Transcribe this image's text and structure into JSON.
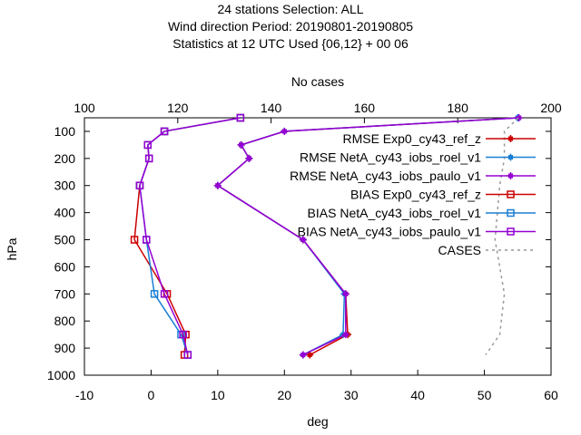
{
  "header": {
    "line1": "24 stations Selection: ALL",
    "line2": "Wind direction  Period: 20190801-20190805",
    "line3": "Statistics at 12 UTC  Used {06,12} + 00 06"
  },
  "chart_data": {
    "type": "line",
    "title": "24 stations Selection: ALL / Wind direction  Period: 20190801-20190805 / Statistics at 12 UTC  Used {06,12} + 00 06",
    "xlabel": "deg",
    "ylabel": "hPa",
    "x2label": "No cases",
    "xlim": [
      -10,
      60
    ],
    "ylim": [
      1000,
      50
    ],
    "x2lim": [
      100,
      200
    ],
    "y_reversed": true,
    "xticks": [
      "-10",
      "0",
      "10",
      "20",
      "30",
      "40",
      "50",
      "60"
    ],
    "yticks": [
      "100",
      "200",
      "300",
      "400",
      "500",
      "600",
      "700",
      "800",
      "900",
      "1000"
    ],
    "x2ticks": [
      "100",
      "120",
      "140",
      "160",
      "180",
      "200"
    ],
    "grid": false,
    "legend_position": "top-right",
    "series": [
      {
        "name": "RMSE Exp0_cy43_ref_z",
        "color": "#cc0000",
        "marker": "filled-square",
        "points": [
          [
            55.0,
            50
          ],
          [
            20.0,
            100
          ],
          [
            13.5,
            150
          ],
          [
            14.7,
            200
          ],
          [
            10.0,
            300
          ],
          [
            22.8,
            500
          ],
          [
            29.2,
            700
          ],
          [
            29.5,
            850
          ],
          [
            23.8,
            925
          ]
        ]
      },
      {
        "name": "RMSE NetA_cy43_iobs_roel_v1",
        "color": "#1a7fd4",
        "marker": "filled-square",
        "points": [
          [
            55.0,
            50
          ],
          [
            20.0,
            100
          ],
          [
            13.5,
            150
          ],
          [
            14.7,
            200
          ],
          [
            10.0,
            300
          ],
          [
            22.8,
            500
          ],
          [
            29.0,
            700
          ],
          [
            28.8,
            850
          ],
          [
            22.8,
            925
          ]
        ]
      },
      {
        "name": "RMSE NetA_cy43_iobs_paulo_v1",
        "color": "#9400d3",
        "marker": "filled-square",
        "points": [
          [
            55.2,
            50
          ],
          [
            20.0,
            100
          ],
          [
            13.5,
            150
          ],
          [
            14.7,
            200
          ],
          [
            10.0,
            300
          ],
          [
            22.8,
            500
          ],
          [
            29.2,
            700
          ],
          [
            29.2,
            850
          ],
          [
            22.8,
            925
          ]
        ]
      },
      {
        "name": "BIAS Exp0_cy43_ref_z",
        "color": "#cc0000",
        "marker": "open-square",
        "points": [
          [
            13.4,
            50
          ],
          [
            2.0,
            100
          ],
          [
            -0.5,
            150
          ],
          [
            -0.3,
            200
          ],
          [
            -1.7,
            300
          ],
          [
            -2.5,
            500
          ],
          [
            2.4,
            700
          ],
          [
            5.2,
            850
          ],
          [
            5.0,
            925
          ]
        ]
      },
      {
        "name": "BIAS NetA_cy43_iobs_roel_v1",
        "color": "#1a7fd4",
        "marker": "open-square",
        "points": [
          [
            13.4,
            50
          ],
          [
            2.0,
            100
          ],
          [
            -0.5,
            150
          ],
          [
            -0.3,
            200
          ],
          [
            -1.7,
            300
          ],
          [
            -0.7,
            500
          ],
          [
            0.5,
            700
          ],
          [
            4.5,
            850
          ],
          [
            5.5,
            925
          ]
        ]
      },
      {
        "name": "BIAS NetA_cy43_iobs_paulo_v1",
        "color": "#9400d3",
        "marker": "open-square",
        "points": [
          [
            13.4,
            50
          ],
          [
            2.0,
            100
          ],
          [
            -0.5,
            150
          ],
          [
            -0.3,
            200
          ],
          [
            -1.7,
            300
          ],
          [
            -0.7,
            500
          ],
          [
            2.0,
            700
          ],
          [
            4.8,
            850
          ],
          [
            5.5,
            925
          ]
        ]
      },
      {
        "name": "CASES",
        "color": "#999999",
        "marker": "none",
        "dashed": true,
        "axis": "x2",
        "points": [
          [
            193,
            50
          ],
          [
            190,
            100
          ],
          [
            190,
            150
          ],
          [
            190,
            200
          ],
          [
            189,
            300
          ],
          [
            188,
            500
          ],
          [
            190,
            700
          ],
          [
            189,
            850
          ],
          [
            186,
            925
          ]
        ]
      }
    ]
  }
}
